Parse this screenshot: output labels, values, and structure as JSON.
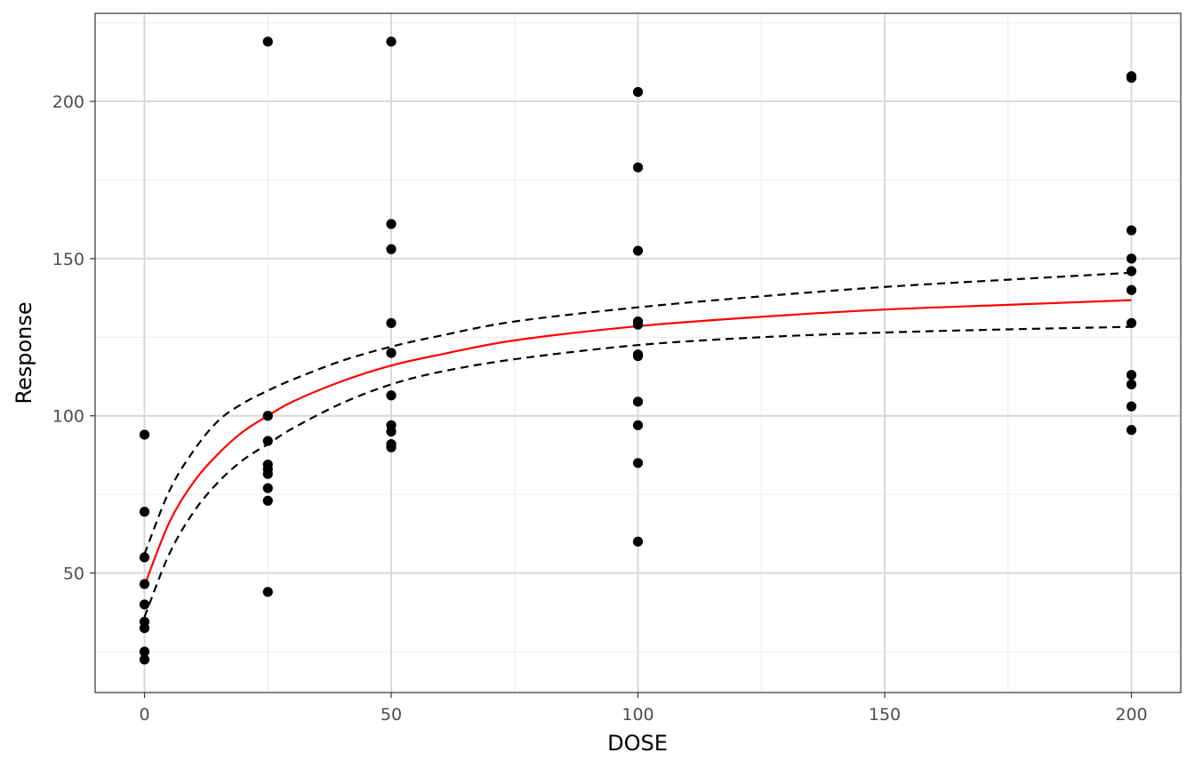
{
  "chart_data": {
    "type": "scatter",
    "title": "",
    "xlabel": "DOSE",
    "ylabel": "Response",
    "xlim": [
      -10,
      210
    ],
    "ylim": [
      12,
      228
    ],
    "x_ticks": [
      0,
      50,
      100,
      150,
      200
    ],
    "x_tick_labels": [
      "0",
      "50",
      "100",
      "150",
      "200"
    ],
    "y_ticks": [
      50,
      100,
      150,
      200
    ],
    "y_tick_labels": [
      "50",
      "100",
      "150",
      "200"
    ],
    "grid": true,
    "legend": "none",
    "colors": {
      "points": "#000000",
      "fit": "#ff0000",
      "band": "#000000"
    },
    "points": [
      {
        "x": 0,
        "y": 94
      },
      {
        "x": 0,
        "y": 69.5
      },
      {
        "x": 0,
        "y": 55
      },
      {
        "x": 0,
        "y": 46.5
      },
      {
        "x": 0,
        "y": 40
      },
      {
        "x": 0,
        "y": 34.5
      },
      {
        "x": 0,
        "y": 32.5
      },
      {
        "x": 0,
        "y": 25
      },
      {
        "x": 0,
        "y": 22.5
      },
      {
        "x": 25,
        "y": 219
      },
      {
        "x": 25,
        "y": 100
      },
      {
        "x": 25,
        "y": 92
      },
      {
        "x": 25,
        "y": 84.5
      },
      {
        "x": 25,
        "y": 83
      },
      {
        "x": 25,
        "y": 81.5
      },
      {
        "x": 25,
        "y": 77
      },
      {
        "x": 25,
        "y": 73
      },
      {
        "x": 25,
        "y": 44
      },
      {
        "x": 50,
        "y": 219
      },
      {
        "x": 50,
        "y": 161
      },
      {
        "x": 50,
        "y": 153
      },
      {
        "x": 50,
        "y": 129.5
      },
      {
        "x": 50,
        "y": 120
      },
      {
        "x": 50,
        "y": 106.5
      },
      {
        "x": 50,
        "y": 97
      },
      {
        "x": 50,
        "y": 95
      },
      {
        "x": 50,
        "y": 91
      },
      {
        "x": 50,
        "y": 90
      },
      {
        "x": 100,
        "y": 203
      },
      {
        "x": 100,
        "y": 179
      },
      {
        "x": 100,
        "y": 152.5
      },
      {
        "x": 100,
        "y": 130
      },
      {
        "x": 100,
        "y": 129
      },
      {
        "x": 100,
        "y": 119.5
      },
      {
        "x": 100,
        "y": 119
      },
      {
        "x": 100,
        "y": 104.5
      },
      {
        "x": 100,
        "y": 97
      },
      {
        "x": 100,
        "y": 85
      },
      {
        "x": 100,
        "y": 60
      },
      {
        "x": 200,
        "y": 208
      },
      {
        "x": 200,
        "y": 207.5
      },
      {
        "x": 200,
        "y": 159
      },
      {
        "x": 200,
        "y": 150
      },
      {
        "x": 200,
        "y": 146
      },
      {
        "x": 200,
        "y": 140
      },
      {
        "x": 200,
        "y": 129.5
      },
      {
        "x": 200,
        "y": 113
      },
      {
        "x": 200,
        "y": 110
      },
      {
        "x": 200,
        "y": 103
      },
      {
        "x": 200,
        "y": 95.5
      }
    ],
    "fit_curve": {
      "x": [
        0,
        5,
        10,
        15,
        20,
        25,
        30,
        40,
        50,
        60,
        75,
        100,
        125,
        150,
        175,
        200
      ],
      "y": [
        46,
        66,
        79,
        88,
        95,
        100,
        104.5,
        111,
        116,
        119.5,
        124,
        128.5,
        131.5,
        133.8,
        135.3,
        136.8
      ]
    },
    "upper_band": {
      "x": [
        0,
        5,
        10,
        15,
        20,
        25,
        30,
        40,
        50,
        60,
        75,
        100,
        125,
        150,
        175,
        200
      ],
      "y": [
        56,
        76,
        89,
        98.5,
        104,
        108,
        111.5,
        117.5,
        122,
        125.5,
        130,
        134.5,
        138,
        141,
        143.3,
        145.5
      ]
    },
    "lower_band": {
      "x": [
        0,
        5,
        10,
        15,
        20,
        25,
        30,
        40,
        50,
        60,
        75,
        100,
        125,
        150,
        175,
        200
      ],
      "y": [
        36,
        56,
        69.5,
        79,
        86,
        91,
        96,
        104,
        110,
        114,
        118,
        122.5,
        125,
        126.5,
        127.5,
        128.3
      ]
    }
  }
}
